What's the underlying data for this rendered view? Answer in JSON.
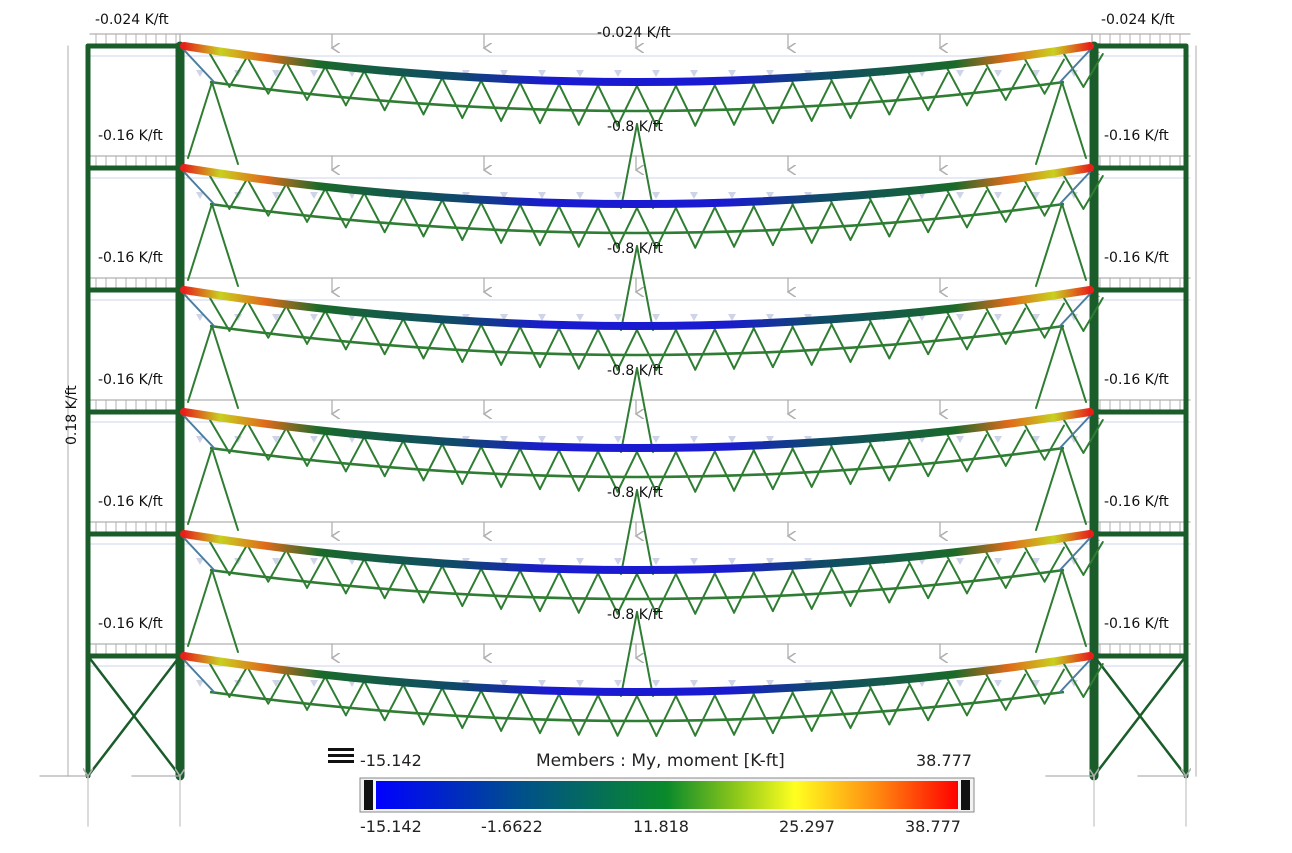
{
  "loads": {
    "roof_left": "-0.024 K/ft",
    "roof_center": "-0.024 K/ft",
    "roof_right": "-0.024 K/ft",
    "floor_side": "-0.16 K/ft",
    "floor_center": "-0.8 K/ft",
    "column_lateral": "0.18 K/ft"
  },
  "legend": {
    "title": "Members : My, moment [K-ft]",
    "min_label": "-15.142",
    "max_label": "38.777",
    "ticks": [
      "-15.142",
      "-1.6622",
      "11.818",
      "25.297",
      "38.777"
    ],
    "gradient": [
      "#0000ff",
      "#006400",
      "#ffff00",
      "#ff0000"
    ]
  },
  "colors": {
    "frame_member": "#1a5c2a",
    "truss_member": "#2e7d32",
    "load_arrow": "#b0b0b0",
    "load_arrow_faint": "#cfd3e8"
  },
  "icons": {
    "legend_menu": "menu-icon"
  }
}
